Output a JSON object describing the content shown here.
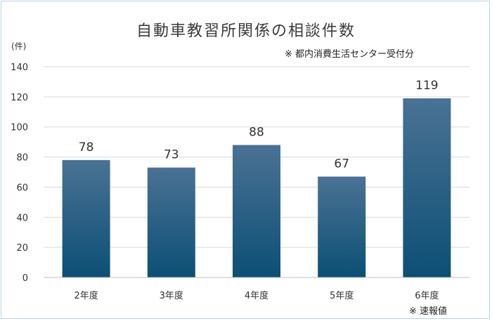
{
  "chart_data": {
    "type": "bar",
    "title": "自動車教習所関係の相談件数",
    "unit_label": "(件)",
    "note_top": "※ 都内消費生活センター受付分",
    "note_bottom": "※ 速報値",
    "categories": [
      "2年度",
      "3年度",
      "4年度",
      "5年度",
      "6年度"
    ],
    "values": [
      78,
      73,
      88,
      67,
      119
    ],
    "ylim": [
      0,
      140
    ],
    "yticks": [
      0,
      20,
      40,
      60,
      80,
      100,
      120,
      140
    ],
    "grid": true,
    "bar_color_top": "#4a7294",
    "bar_color_bottom": "#0c4f75"
  }
}
